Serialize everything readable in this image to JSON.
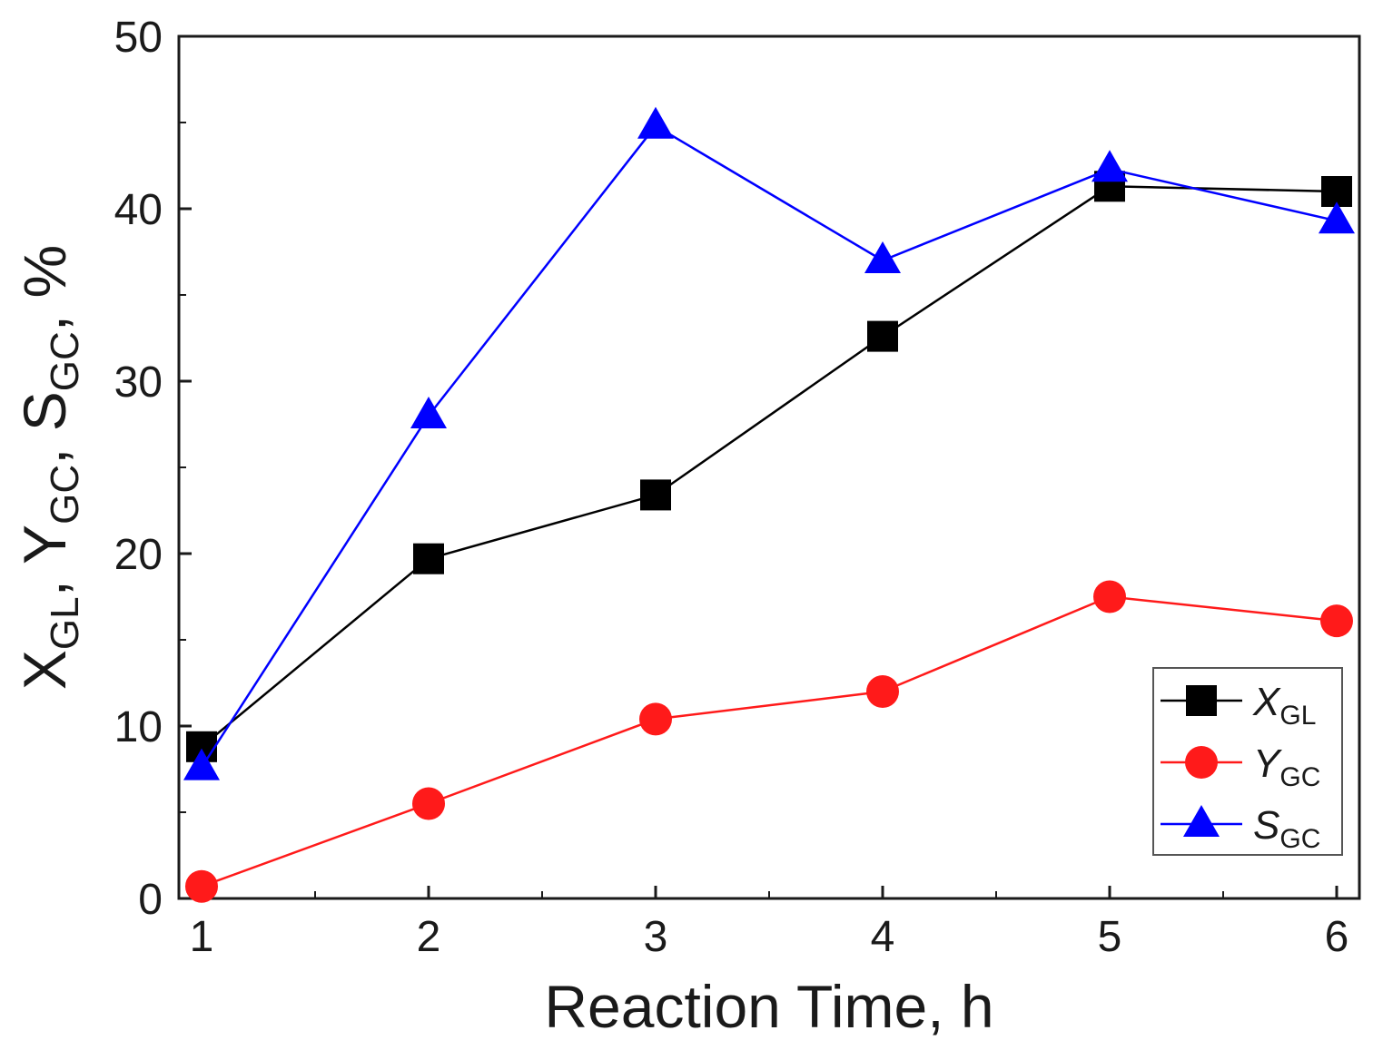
{
  "chart_data": {
    "type": "line",
    "title": "",
    "xlabel": "Reaction Time, h",
    "ylabel_parts": [
      {
        "main": "X",
        "sub": "GL",
        "sep": ", "
      },
      {
        "main": "Y",
        "sub": "GC",
        "sep": ", "
      },
      {
        "main": "S",
        "sub": "GC",
        "sep": ", %"
      }
    ],
    "xlim": [
      0.9,
      6.1
    ],
    "ylim": [
      0,
      50
    ],
    "x": [
      1,
      2,
      3,
      4,
      5,
      6
    ],
    "x_ticks": [
      1,
      2,
      3,
      4,
      5,
      6
    ],
    "y_ticks": [
      0,
      10,
      20,
      30,
      40,
      50
    ],
    "grid": false,
    "legend_position": "bottom-right",
    "series": [
      {
        "name": "X",
        "name_sub": "GL",
        "marker": "square",
        "color": "#000000",
        "values": [
          8.8,
          19.7,
          23.4,
          32.6,
          41.3,
          41.0
        ]
      },
      {
        "name": "Y",
        "name_sub": "GC",
        "marker": "circle",
        "color": "#ff1a1a",
        "values": [
          0.7,
          5.5,
          10.4,
          12.0,
          17.5,
          16.1
        ]
      },
      {
        "name": "S",
        "name_sub": "GC",
        "marker": "triangle",
        "color": "#0000ff",
        "values": [
          7.6,
          28.0,
          44.8,
          37.0,
          42.3,
          39.3
        ]
      }
    ]
  }
}
